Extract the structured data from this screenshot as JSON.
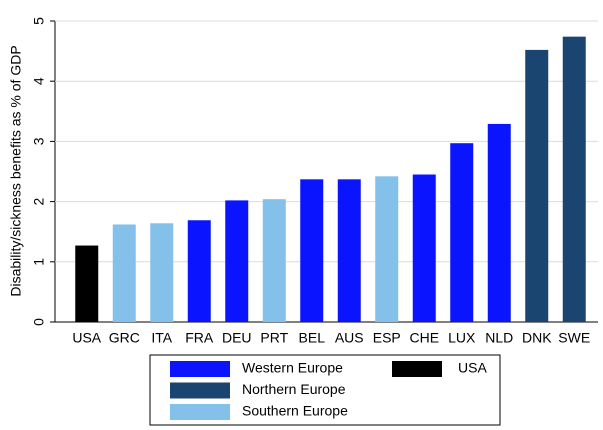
{
  "chart_data": {
    "type": "bar",
    "y_label": "Disability/sickness benefits as % of GDP",
    "categories": [
      "USA",
      "GRC",
      "ITA",
      "FRA",
      "DEU",
      "PRT",
      "BEL",
      "AUS",
      "ESP",
      "CHE",
      "LUX",
      "NLD",
      "DNK",
      "SWE"
    ],
    "series": [
      {
        "name": "Western Europe",
        "color": "#0a14ff",
        "values": [
          null,
          null,
          null,
          1.69,
          2.02,
          null,
          2.37,
          2.37,
          null,
          2.45,
          2.97,
          3.29,
          null,
          null
        ]
      },
      {
        "name": "Northern Europe",
        "color": "#1b4571",
        "values": [
          null,
          null,
          null,
          null,
          null,
          null,
          null,
          null,
          null,
          null,
          null,
          null,
          4.52,
          4.74
        ]
      },
      {
        "name": "Southern Europe",
        "color": "#84c1ea",
        "values": [
          null,
          1.62,
          1.64,
          null,
          null,
          2.04,
          null,
          null,
          2.42,
          null,
          null,
          null,
          null,
          null
        ]
      },
      {
        "name": "USA",
        "color": "#000000",
        "values": [
          1.27,
          null,
          null,
          null,
          null,
          null,
          null,
          null,
          null,
          null,
          null,
          null,
          null,
          null
        ]
      }
    ],
    "ylim": [
      0,
      5
    ],
    "yticks": [
      0,
      1,
      2,
      3,
      4,
      5
    ],
    "grid": true
  }
}
